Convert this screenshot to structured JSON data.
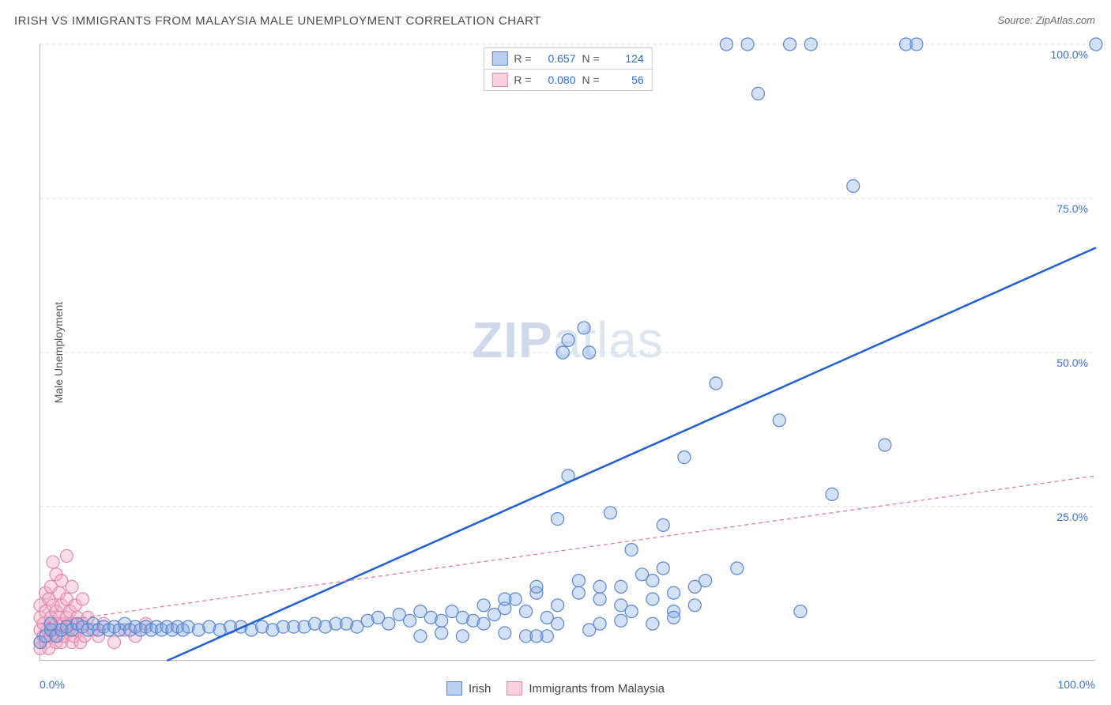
{
  "title": "IRISH VS IMMIGRANTS FROM MALAYSIA MALE UNEMPLOYMENT CORRELATION CHART",
  "source": "Source: ZipAtlas.com",
  "ylabel": "Male Unemployment",
  "watermark": {
    "bold": "ZIP",
    "light": "atlas"
  },
  "chart": {
    "type": "scatter",
    "xlim": [
      0,
      100
    ],
    "ylim": [
      0,
      100
    ],
    "xtick_labels": {
      "min": "0.0%",
      "max": "100.0%"
    },
    "yticks": [
      25,
      50,
      75,
      100
    ],
    "ytick_labels": [
      "25.0%",
      "50.0%",
      "75.0%",
      "100.0%"
    ],
    "grid_color": "#dddddd",
    "background_color": "#ffffff",
    "axis_color": "#bbbbbb",
    "marker_radius": 8,
    "marker_stroke_width": 1.2,
    "series": [
      {
        "name": "Irish",
        "color_fill": "rgba(130,170,230,0.35)",
        "color_stroke": "#5a85d0",
        "R": "0.657",
        "N": "124",
        "regression": {
          "x1": 12,
          "y1": 0,
          "x2": 100,
          "y2": 67,
          "stroke": "#1f5fd8",
          "width": 2.5,
          "dash": "none"
        },
        "points": [
          [
            0,
            3
          ],
          [
            0.5,
            4
          ],
          [
            1,
            5
          ],
          [
            1.5,
            4
          ],
          [
            1,
            6
          ],
          [
            2,
            5
          ],
          [
            2.5,
            5.5
          ],
          [
            3,
            5
          ],
          [
            3.5,
            6
          ],
          [
            4,
            5.5
          ],
          [
            4.5,
            5
          ],
          [
            5,
            6
          ],
          [
            5.5,
            5
          ],
          [
            6,
            5.5
          ],
          [
            6.5,
            5
          ],
          [
            7,
            5.5
          ],
          [
            7.5,
            5
          ],
          [
            8,
            6
          ],
          [
            8.5,
            5
          ],
          [
            9,
            5.5
          ],
          [
            9.5,
            5
          ],
          [
            10,
            5.5
          ],
          [
            10.5,
            5
          ],
          [
            11,
            5.5
          ],
          [
            11.5,
            5
          ],
          [
            12,
            5.5
          ],
          [
            12.5,
            5
          ],
          [
            13,
            5.5
          ],
          [
            13.5,
            5
          ],
          [
            14,
            5.5
          ],
          [
            15,
            5
          ],
          [
            16,
            5.5
          ],
          [
            17,
            5
          ],
          [
            18,
            5.5
          ],
          [
            19,
            5.5
          ],
          [
            20,
            5
          ],
          [
            21,
            5.5
          ],
          [
            22,
            5
          ],
          [
            23,
            5.5
          ],
          [
            24,
            5.5
          ],
          [
            25,
            5.5
          ],
          [
            26,
            6
          ],
          [
            27,
            5.5
          ],
          [
            28,
            6
          ],
          [
            29,
            6
          ],
          [
            30,
            5.5
          ],
          [
            31,
            6.5
          ],
          [
            32,
            7
          ],
          [
            33,
            6
          ],
          [
            34,
            7.5
          ],
          [
            35,
            6.5
          ],
          [
            36,
            8
          ],
          [
            37,
            7
          ],
          [
            38,
            6.5
          ],
          [
            39,
            8
          ],
          [
            40,
            7
          ],
          [
            41,
            6.5
          ],
          [
            42,
            9
          ],
          [
            43,
            7.5
          ],
          [
            44,
            8.5
          ],
          [
            45,
            10
          ],
          [
            46,
            8
          ],
          [
            47,
            11
          ],
          [
            48,
            7
          ],
          [
            49,
            23
          ],
          [
            49.5,
            50
          ],
          [
            50,
            52
          ],
          [
            50,
            30
          ],
          [
            51,
            11
          ],
          [
            51.5,
            54
          ],
          [
            52,
            50
          ],
          [
            53,
            12
          ],
          [
            54,
            24
          ],
          [
            55,
            9
          ],
          [
            56,
            18
          ],
          [
            57,
            14
          ],
          [
            58,
            10
          ],
          [
            59,
            22
          ],
          [
            60,
            8
          ],
          [
            61,
            33
          ],
          [
            62,
            12
          ],
          [
            64,
            45
          ],
          [
            65,
            100
          ],
          [
            66,
            15
          ],
          [
            67,
            100
          ],
          [
            68,
            92
          ],
          [
            70,
            39
          ],
          [
            71,
            100
          ],
          [
            72,
            8
          ],
          [
            73,
            100
          ],
          [
            75,
            27
          ],
          [
            77,
            77
          ],
          [
            80,
            35
          ],
          [
            82,
            100
          ],
          [
            83,
            100
          ],
          [
            100,
            100
          ],
          [
            52,
            5
          ],
          [
            53,
            6
          ],
          [
            55,
            6.5
          ],
          [
            58,
            6
          ],
          [
            60,
            7
          ],
          [
            62,
            9
          ],
          [
            48,
            4
          ],
          [
            46,
            4
          ],
          [
            44,
            4.5
          ],
          [
            40,
            4
          ],
          [
            38,
            4.5
          ],
          [
            36,
            4
          ],
          [
            58,
            13
          ],
          [
            60,
            11
          ],
          [
            55,
            12
          ],
          [
            53,
            10
          ],
          [
            63,
            13
          ],
          [
            51,
            13
          ],
          [
            56,
            8
          ],
          [
            59,
            15
          ],
          [
            42,
            6
          ],
          [
            44,
            10
          ],
          [
            47,
            12
          ],
          [
            49,
            9
          ],
          [
            49,
            6
          ],
          [
            47,
            4
          ]
        ]
      },
      {
        "name": "Immigrants from Malaysia",
        "color_fill": "rgba(245,170,200,0.4)",
        "color_stroke": "#e08aad",
        "R": "0.080",
        "N": "56",
        "regression": {
          "x1": 0,
          "y1": 6,
          "x2": 100,
          "y2": 30,
          "stroke": "#e47a9b",
          "width": 1.3,
          "dash": "5,4"
        },
        "points": [
          [
            0,
            2
          ],
          [
            0,
            3
          ],
          [
            0,
            5
          ],
          [
            0,
            7
          ],
          [
            0,
            9
          ],
          [
            0.3,
            4
          ],
          [
            0.3,
            6
          ],
          [
            0.5,
            3
          ],
          [
            0.5,
            8
          ],
          [
            0.5,
            11
          ],
          [
            0.7,
            5
          ],
          [
            0.8,
            2
          ],
          [
            0.8,
            10
          ],
          [
            1,
            4
          ],
          [
            1,
            7
          ],
          [
            1,
            12
          ],
          [
            1.2,
            5
          ],
          [
            1.2,
            9
          ],
          [
            1.2,
            16
          ],
          [
            1.5,
            3
          ],
          [
            1.5,
            6
          ],
          [
            1.5,
            8
          ],
          [
            1.5,
            14
          ],
          [
            1.7,
            4
          ],
          [
            1.8,
            7
          ],
          [
            1.8,
            11
          ],
          [
            2,
            3
          ],
          [
            2,
            5
          ],
          [
            2,
            9
          ],
          [
            2,
            13
          ],
          [
            2.2,
            6
          ],
          [
            2.3,
            4
          ],
          [
            2.5,
            7
          ],
          [
            2.5,
            10
          ],
          [
            2.5,
            17
          ],
          [
            2.7,
            5
          ],
          [
            2.8,
            8
          ],
          [
            3,
            3
          ],
          [
            3,
            6
          ],
          [
            3,
            12
          ],
          [
            3.2,
            4
          ],
          [
            3.3,
            9
          ],
          [
            3.5,
            5
          ],
          [
            3.5,
            7
          ],
          [
            3.8,
            3
          ],
          [
            4,
            6
          ],
          [
            4,
            10
          ],
          [
            4.2,
            4
          ],
          [
            4.5,
            7
          ],
          [
            5,
            5
          ],
          [
            5.5,
            4
          ],
          [
            6,
            6
          ],
          [
            7,
            3
          ],
          [
            8,
            5
          ],
          [
            9,
            4
          ],
          [
            10,
            6
          ]
        ]
      }
    ]
  },
  "stat_labels": {
    "R": "R =",
    "N": "N ="
  },
  "bottom_legend": [
    {
      "label": "Irish",
      "swatch": "blue"
    },
    {
      "label": "Immigrants from Malaysia",
      "swatch": "pink"
    }
  ]
}
